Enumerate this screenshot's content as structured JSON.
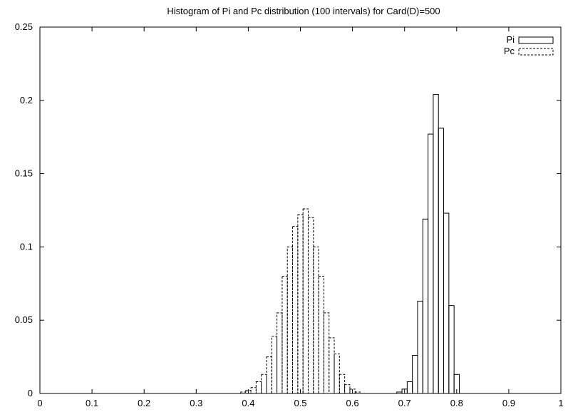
{
  "chart_data": {
    "type": "bar",
    "title": "Histogram of Pi and Pc distribution (100 intervals) for Card(D)=500",
    "xlabel": "",
    "ylabel": "",
    "xlim": [
      0,
      1
    ],
    "ylim": [
      0,
      0.25
    ],
    "bin_width": 0.01,
    "legend_position": "top-right",
    "grid": false,
    "xticks": [
      "0",
      "0.1",
      "0.2",
      "0.3",
      "0.4",
      "0.5",
      "0.6",
      "0.7",
      "0.8",
      "0.9",
      "1"
    ],
    "yticks": [
      "0",
      "0.05",
      "0.1",
      "0.15",
      "0.2",
      "0.25"
    ],
    "series": [
      {
        "name": "Pi",
        "style": "solid",
        "color": "#000000",
        "x": [
          0.69,
          0.7,
          0.71,
          0.72,
          0.73,
          0.74,
          0.75,
          0.76,
          0.77,
          0.78,
          0.79,
          0.8
        ],
        "values": [
          0.001,
          0.003,
          0.008,
          0.026,
          0.063,
          0.119,
          0.177,
          0.204,
          0.181,
          0.123,
          0.06,
          0.013
        ]
      },
      {
        "name": "Pc",
        "style": "dashed",
        "color": "#000000",
        "x": [
          0.39,
          0.4,
          0.41,
          0.42,
          0.43,
          0.44,
          0.45,
          0.46,
          0.47,
          0.48,
          0.49,
          0.5,
          0.51,
          0.52,
          0.53,
          0.54,
          0.55,
          0.56,
          0.57,
          0.58,
          0.59,
          0.6,
          0.61
        ],
        "values": [
          0.001,
          0.002,
          0.004,
          0.008,
          0.013,
          0.025,
          0.039,
          0.055,
          0.08,
          0.1,
          0.114,
          0.122,
          0.126,
          0.12,
          0.1,
          0.08,
          0.055,
          0.038,
          0.027,
          0.013,
          0.006,
          0.003,
          0.001
        ]
      }
    ]
  }
}
